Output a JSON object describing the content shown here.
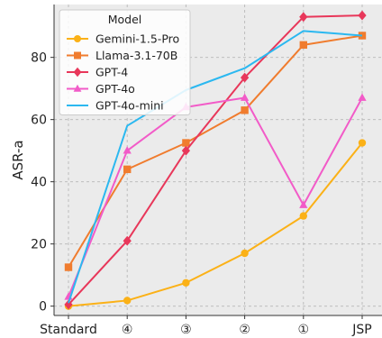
{
  "chart_data": {
    "type": "line",
    "title": "",
    "xlabel": "",
    "ylabel": "ASR-a",
    "categories": [
      "Standard",
      "④",
      "③",
      "②",
      "①",
      "JSP"
    ],
    "ylim": [
      -3,
      97
    ],
    "yticks": [
      0,
      20,
      40,
      60,
      80
    ],
    "grid": true,
    "legend": {
      "title": "Model",
      "placement": "top-left"
    },
    "series": [
      {
        "name": "Gemini-1.5-Pro",
        "color": "#fbb117",
        "marker": "circle",
        "values": [
          0.0,
          1.8,
          7.5,
          17.0,
          29.0,
          52.5
        ]
      },
      {
        "name": "Llama-3.1-70B",
        "color": "#f07c2e",
        "marker": "square",
        "values": [
          12.5,
          44.0,
          52.5,
          63.0,
          84.0,
          87.0
        ]
      },
      {
        "name": "GPT-4",
        "color": "#e8375a",
        "marker": "diamond",
        "values": [
          0.5,
          21.0,
          50.0,
          73.5,
          93.0,
          93.5
        ]
      },
      {
        "name": "GPT-4o",
        "color": "#f25bc8",
        "marker": "triangle",
        "values": [
          3.0,
          50.0,
          64.0,
          67.0,
          32.5,
          67.0
        ]
      },
      {
        "name": "GPT-4o-mini",
        "color": "#2bb8f0",
        "marker": "none",
        "values": [
          1.0,
          58.0,
          69.5,
          76.5,
          88.5,
          87.0
        ]
      }
    ]
  }
}
